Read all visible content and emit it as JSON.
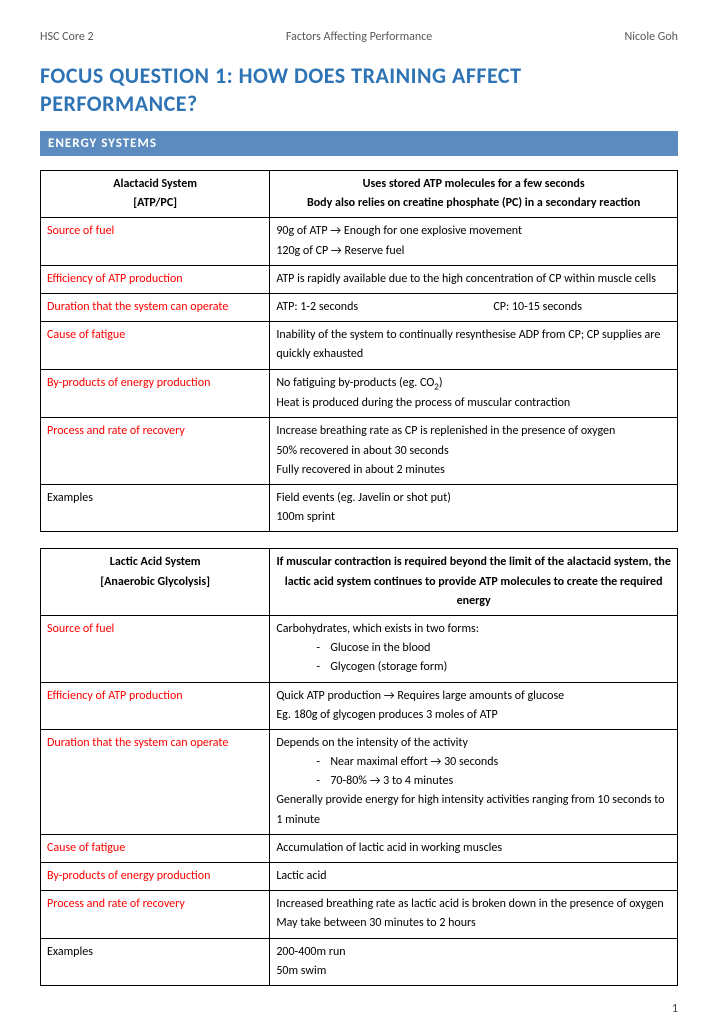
{
  "header": {
    "left": "HSC Core 2",
    "center": "Factors Affecting Performance",
    "right": "Nicole Goh"
  },
  "title": "FOCUS QUESTION 1: HOW DOES TRAINING AFFECT PERFORMANCE?",
  "section": "ENERGY SYSTEMS",
  "t1": {
    "head_l1": "Alactacid System",
    "head_l2": "[ATP/PC]",
    "head_r1": "Uses stored ATP molecules for a few seconds",
    "head_r2": "Body also relies on creatine phosphate (PC) in a secondary reaction",
    "r1l": "Source of fuel",
    "r1r1": "90g of ATP → Enough for one explosive movement",
    "r1r2": "120g of CP → Reserve fuel",
    "r2l": "Efficiency of ATP production",
    "r2r": "ATP is rapidly available due to the high concentration of CP within muscle cells",
    "r3l": "Duration that the system can operate",
    "r3r1": "ATP: 1-2 seconds",
    "r3r2": "CP: 10-15 seconds",
    "r4l": "Cause of fatigue",
    "r4r": "Inability of the system to continually resynthesise ADP from CP; CP supplies are quickly exhausted",
    "r5l": "By-products of energy production",
    "r5r1a": "No fatiguing by-products (eg. CO",
    "r5r1b": ")",
    "r5r2": "Heat is produced during the process of muscular contraction",
    "r6l": "Process and rate of recovery",
    "r6r1": "Increase breathing rate as CP is replenished in the presence of oxygen",
    "r6r2": "50% recovered in about 30 seconds",
    "r6r3": "Fully recovered in about 2 minutes",
    "r7l": "Examples",
    "r7r1": "Field events (eg. Javelin or shot put)",
    "r7r2": "100m sprint"
  },
  "t2": {
    "head_l1": "Lactic Acid System",
    "head_l2": "[Anaerobic Glycolysis]",
    "head_r": "If muscular contraction is required beyond the limit of the alactacid system, the lactic acid system continues to provide ATP molecules to create the required energy",
    "r1l": "Source of fuel",
    "r1r1": "Carbohydrates, which exists in two forms:",
    "r1r2": "Glucose in the blood",
    "r1r3": "Glycogen (storage form)",
    "r2l": "Efficiency of ATP production",
    "r2r1": "Quick ATP production → Requires large amounts of glucose",
    "r2r2": "Eg. 180g of glycogen produces 3 moles of ATP",
    "r3l": "Duration that the system can operate",
    "r3r1": "Depends on the intensity of the activity",
    "r3r2": "Near maximal effort → 30 seconds",
    "r3r3": "70-80% → 3 to 4 minutes",
    "r3r4": "Generally provide energy for high intensity activities ranging from 10 seconds to 1 minute",
    "r4l": "Cause of fatigue",
    "r4r": "Accumulation of lactic acid in working muscles",
    "r5l": "By-products of energy production",
    "r5r": "Lactic acid",
    "r6l": "Process and rate of recovery",
    "r6r1": "Increased breathing rate as lactic acid is broken down in the presence of oxygen",
    "r6r2": "May take between 30 minutes to 2 hours",
    "r7l": "Examples",
    "r7r1": "200-400m run",
    "r7r2": "50m swim"
  },
  "page": "1"
}
